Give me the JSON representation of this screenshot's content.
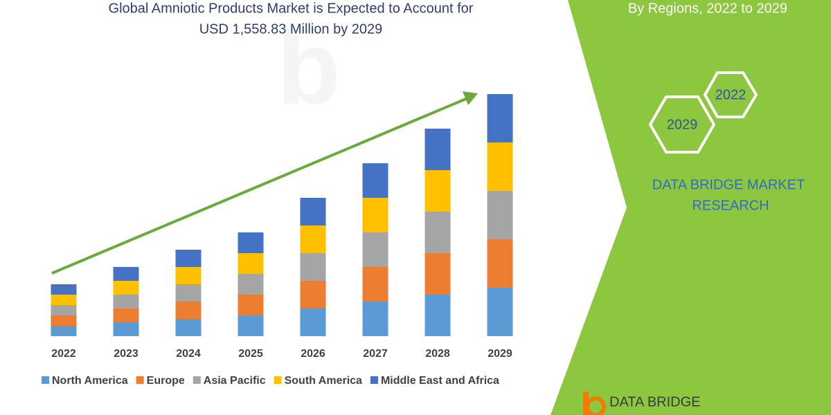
{
  "chart_data": {
    "type": "stacked-bar",
    "title": [
      "Global Amniotic Products Market is Expected to Account for",
      "USD 1,558.83 Million by 2029"
    ],
    "subtitle": "By Regions, 2022 to 2029",
    "categories": [
      "2022",
      "2023",
      "2024",
      "2025",
      "2026",
      "2027",
      "2028",
      "2029"
    ],
    "series": [
      {
        "name": "North America",
        "color": "#5b9bd5",
        "values": [
          15,
          20,
          25,
          30,
          40,
          50,
          60,
          70
        ]
      },
      {
        "name": "Europe",
        "color": "#ed7d31",
        "values": [
          15,
          20,
          25,
          30,
          40,
          50,
          60,
          70
        ]
      },
      {
        "name": "Asia Pacific",
        "color": "#a5a5a5",
        "values": [
          15,
          20,
          25,
          30,
          40,
          50,
          60,
          70
        ]
      },
      {
        "name": "South America",
        "color": "#ffc000",
        "values": [
          15,
          20,
          25,
          30,
          40,
          50,
          60,
          70
        ]
      },
      {
        "name": "Middle East and Africa",
        "color": "#4472c4",
        "values": [
          15,
          20,
          25,
          30,
          40,
          50,
          60,
          70
        ]
      }
    ],
    "annotations": {
      "hex_front": "2029",
      "hex_back": "2022",
      "brand": [
        "DATA BRIDGE MARKET",
        "RESEARCH"
      ],
      "logo": "DATA BRIDGE"
    },
    "legend": "bottom"
  }
}
